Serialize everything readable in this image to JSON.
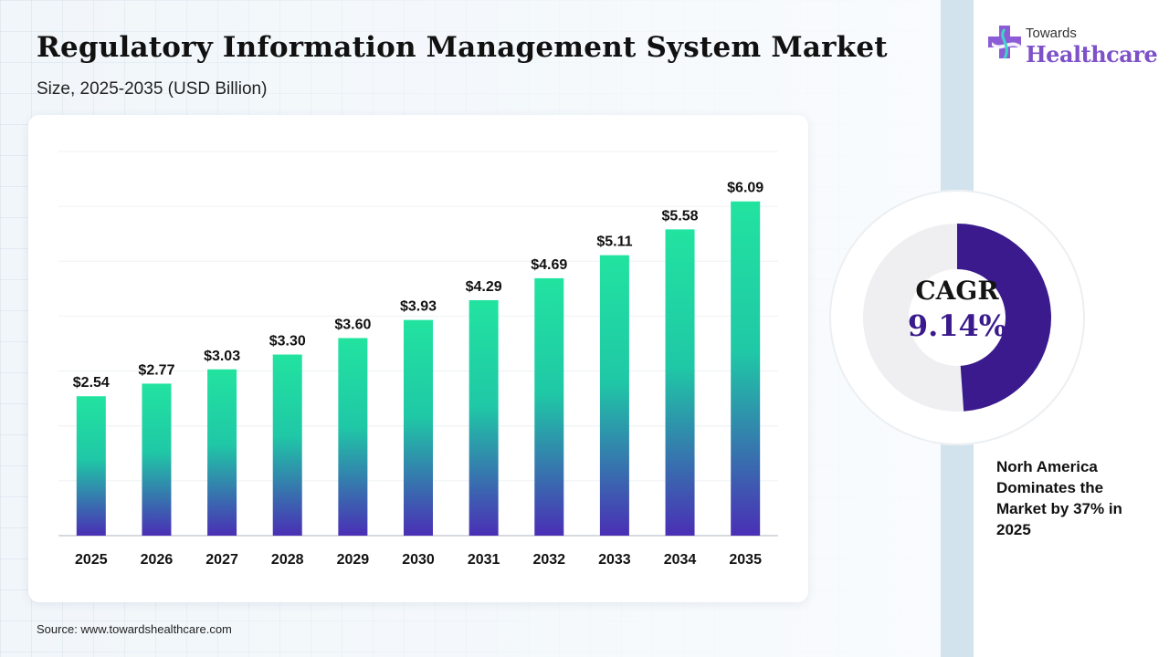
{
  "header": {
    "title": "Regulatory Information Management System Market",
    "subtitle": "Size, 2025-2035 (USD Billion)"
  },
  "logo": {
    "line1": "Towards",
    "line2": "Healthcare",
    "icon": "medical-cross-icon"
  },
  "colors": {
    "bar_top": "#22e3a0",
    "bar_bottom": "#4a2fb5",
    "cagr_arc": "#3a1a8c",
    "brand": "#7d52c9"
  },
  "chart_data": {
    "type": "bar",
    "title": "Regulatory Information Management System Market",
    "subtitle": "Size, 2025-2035 (USD Billion)",
    "categories": [
      "2025",
      "2026",
      "2027",
      "2028",
      "2029",
      "2030",
      "2031",
      "2032",
      "2033",
      "2034",
      "2035"
    ],
    "values": [
      2.54,
      2.77,
      3.03,
      3.3,
      3.6,
      3.93,
      4.29,
      4.69,
      5.11,
      5.58,
      6.09
    ],
    "labels": [
      "$2.54",
      "$2.77",
      "$3.03",
      "$3.30",
      "$3.60",
      "$3.93",
      "$4.29",
      "$4.69",
      "$5.11",
      "$5.58",
      "$6.09"
    ],
    "ylim": [
      0,
      7
    ],
    "grid": true,
    "legend": "none"
  },
  "cagr": {
    "label": "CAGR",
    "value_text": "9.14%",
    "arc_fraction": 0.5
  },
  "note": "Norh America Dominates the Market by 37% in 2025",
  "source": "Source: www.towardshealthcare.com"
}
